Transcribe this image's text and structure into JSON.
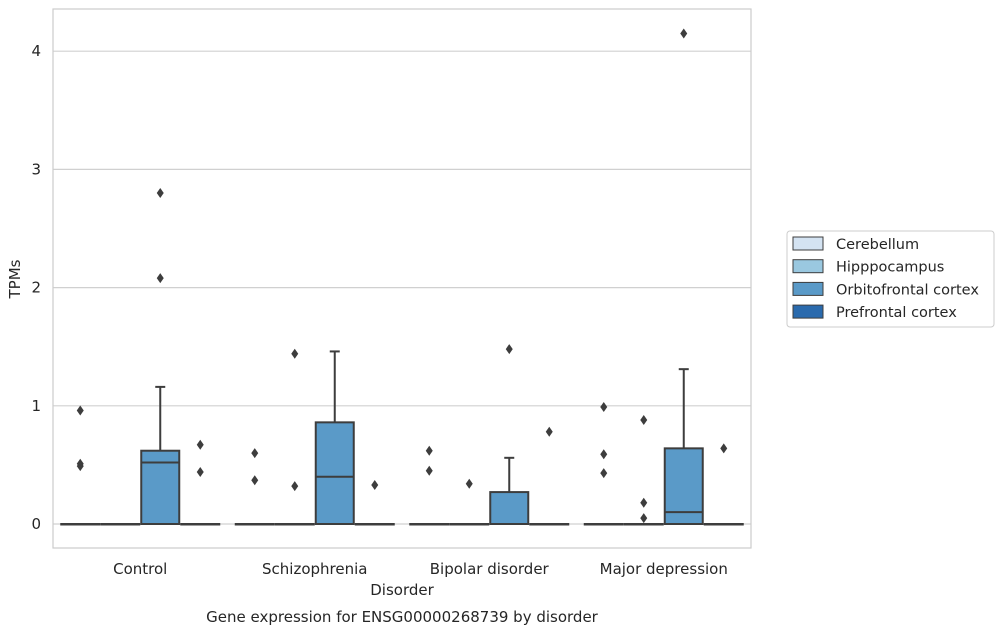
{
  "chart_data": {
    "type": "box",
    "title": "Gene expression for ENSG00000268739 by disorder",
    "xlabel": "Disorder",
    "ylabel": "TPMs",
    "ylim": [
      -0.2,
      4.35
    ],
    "yticks": [
      0,
      1,
      2,
      3,
      4
    ],
    "categories": [
      "Control",
      "Schizophrenia",
      "Bipolar disorder",
      "Major depression"
    ],
    "grid": true,
    "legend_position": "right",
    "series": [
      {
        "name": "Cerebellum",
        "color": "#d4e3f2",
        "boxes": [
          {
            "q1": 0,
            "median": 0,
            "q3": 0,
            "whisker_low": 0,
            "whisker_high": 0,
            "outliers": [
              0.96,
              0.51,
              0.49
            ]
          },
          {
            "q1": 0,
            "median": 0,
            "q3": 0,
            "whisker_low": 0,
            "whisker_high": 0,
            "outliers": [
              0.6,
              0.37
            ]
          },
          {
            "q1": 0,
            "median": 0,
            "q3": 0,
            "whisker_low": 0,
            "whisker_high": 0,
            "outliers": [
              0.62,
              0.45
            ]
          },
          {
            "q1": 0,
            "median": 0,
            "q3": 0,
            "whisker_low": 0,
            "whisker_high": 0,
            "outliers": [
              0.99,
              0.59,
              0.43
            ]
          }
        ]
      },
      {
        "name": "Hipppocampus",
        "color": "#9ac8e0",
        "boxes": [
          {
            "q1": 0,
            "median": 0,
            "q3": 0,
            "whisker_low": 0,
            "whisker_high": 0,
            "outliers": []
          },
          {
            "q1": 0,
            "median": 0,
            "q3": 0,
            "whisker_low": 0,
            "whisker_high": 0,
            "outliers": [
              1.44,
              0.32
            ]
          },
          {
            "q1": 0,
            "median": 0,
            "q3": 0,
            "whisker_low": 0,
            "whisker_high": 0,
            "outliers": [
              0.34
            ]
          },
          {
            "q1": 0,
            "median": 0,
            "q3": 0,
            "whisker_low": 0,
            "whisker_high": 0,
            "outliers": [
              0.88,
              0.18,
              0.05
            ]
          }
        ]
      },
      {
        "name": "Orbitofrontal cortex",
        "color": "#5a9ac8",
        "boxes": [
          {
            "q1": 0,
            "median": 0.52,
            "q3": 0.62,
            "whisker_low": 0,
            "whisker_high": 1.16,
            "outliers": [
              2.8,
              2.08
            ]
          },
          {
            "q1": 0,
            "median": 0.4,
            "q3": 0.86,
            "whisker_low": 0,
            "whisker_high": 1.46,
            "outliers": []
          },
          {
            "q1": 0,
            "median": 0,
            "q3": 0.27,
            "whisker_low": 0,
            "whisker_high": 0.56,
            "outliers": [
              1.48
            ]
          },
          {
            "q1": 0,
            "median": 0.1,
            "q3": 0.64,
            "whisker_low": 0,
            "whisker_high": 1.31,
            "outliers": [
              4.15
            ]
          }
        ]
      },
      {
        "name": "Prefrontal cortex",
        "color": "#2a6aad",
        "boxes": [
          {
            "q1": 0,
            "median": 0,
            "q3": 0,
            "whisker_low": 0,
            "whisker_high": 0,
            "outliers": [
              0.67,
              0.44
            ]
          },
          {
            "q1": 0,
            "median": 0,
            "q3": 0,
            "whisker_low": 0,
            "whisker_high": 0,
            "outliers": [
              0.33
            ]
          },
          {
            "q1": 0,
            "median": 0,
            "q3": 0,
            "whisker_low": 0,
            "whisker_high": 0,
            "outliers": [
              0.78
            ]
          },
          {
            "q1": 0,
            "median": 0,
            "q3": 0,
            "whisker_low": 0,
            "whisker_high": 0,
            "outliers": [
              0.64
            ]
          }
        ]
      }
    ]
  }
}
